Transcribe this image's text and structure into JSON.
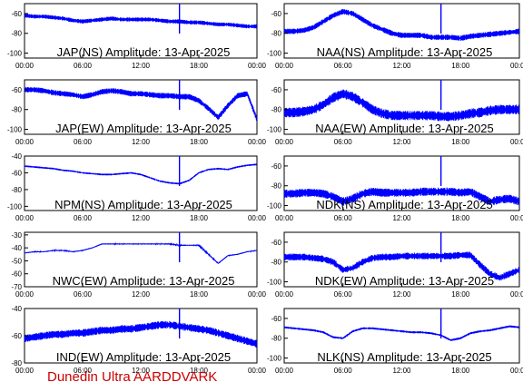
{
  "footer": {
    "credit": "Dunedin Ultra AARDDVARK"
  },
  "colors": {
    "trace": "#0000ff",
    "axis": "#000000",
    "credit": "#cc0000"
  },
  "x_tick_labels": [
    "00:00",
    "06:00",
    "12:00",
    "18:00",
    "00:00"
  ],
  "chart_data": [
    {
      "type": "line",
      "title": "JAP(NS) Amplitude: 13-Apr-2025",
      "xlabel": "",
      "ylabel": "",
      "ylim": [
        -105,
        -50
      ],
      "yticks": [
        "-60",
        "-80",
        "-100"
      ],
      "ytick_values": [
        -60,
        -80,
        -100
      ],
      "xlim": [
        0,
        24
      ],
      "noise": 3,
      "series": [
        {
          "x": [
            0,
            1,
            2,
            3,
            4,
            5,
            6,
            7,
            8,
            9,
            10,
            11,
            12,
            13,
            14,
            15,
            16,
            17,
            18,
            19,
            20,
            21,
            22,
            23,
            24
          ],
          "values": [
            -62,
            -63,
            -63,
            -64,
            -65,
            -67,
            -68,
            -67,
            -66,
            -65,
            -66,
            -66,
            -66,
            -66,
            -67,
            -68,
            -68,
            -69,
            -69,
            -70,
            -71,
            -71,
            -72,
            -73,
            -73
          ]
        }
      ]
    },
    {
      "type": "line",
      "title": "NAA(NS) Amplitude: 13-Apr-2025",
      "xlabel": "",
      "ylabel": "",
      "ylim": [
        -105,
        -50
      ],
      "yticks": [
        "-60",
        "-80",
        "-100"
      ],
      "ytick_values": [
        -60,
        -80,
        -100
      ],
      "xlim": [
        0,
        24
      ],
      "noise": 4,
      "series": [
        {
          "x": [
            0,
            1,
            2,
            3,
            4,
            5,
            6,
            7,
            8,
            9,
            10,
            11,
            12,
            13,
            14,
            15,
            16,
            17,
            18,
            19,
            20,
            21,
            22,
            23,
            24
          ],
          "values": [
            -78,
            -78,
            -77,
            -74,
            -68,
            -62,
            -58,
            -60,
            -66,
            -72,
            -76,
            -80,
            -82,
            -82,
            -82,
            -84,
            -84,
            -84,
            -85,
            -83,
            -82,
            -81,
            -80,
            -79,
            -78
          ]
        }
      ]
    },
    {
      "type": "line",
      "title": "JAP(EW) Amplitude: 13-Apr-2025",
      "xlabel": "",
      "ylabel": "",
      "ylim": [
        -105,
        -50
      ],
      "yticks": [
        "-60",
        "-80",
        "-100"
      ],
      "ytick_values": [
        -60,
        -80,
        -100
      ],
      "xlim": [
        0,
        24
      ],
      "noise": 4,
      "series": [
        {
          "x": [
            0,
            1,
            2,
            3,
            4,
            5,
            6,
            7,
            8,
            9,
            10,
            11,
            12,
            13,
            14,
            15,
            16,
            17,
            18,
            19,
            20,
            21,
            22,
            23,
            24
          ],
          "values": [
            -60,
            -60,
            -61,
            -63,
            -64,
            -65,
            -67,
            -65,
            -62,
            -61,
            -62,
            -64,
            -64,
            -65,
            -66,
            -66,
            -67,
            -67,
            -71,
            -79,
            -88,
            -76,
            -66,
            -64,
            -90
          ]
        }
      ]
    },
    {
      "type": "line",
      "title": "NAA(EW) Amplitude: 13-Apr-2025",
      "xlabel": "",
      "ylabel": "",
      "ylim": [
        -105,
        -50
      ],
      "yticks": [
        "-60",
        "-80",
        "-100"
      ],
      "ytick_values": [
        -60,
        -80,
        -100
      ],
      "xlim": [
        0,
        24
      ],
      "noise": 7,
      "series": [
        {
          "x": [
            0,
            1,
            2,
            3,
            4,
            5,
            6,
            7,
            8,
            9,
            10,
            11,
            12,
            13,
            14,
            15,
            16,
            17,
            18,
            19,
            20,
            21,
            22,
            23,
            24
          ],
          "values": [
            -83,
            -83,
            -82,
            -80,
            -75,
            -68,
            -64,
            -67,
            -73,
            -80,
            -84,
            -86,
            -86,
            -86,
            -86,
            -86,
            -87,
            -87,
            -86,
            -84,
            -83,
            -81,
            -80,
            -80,
            -80
          ]
        }
      ]
    },
    {
      "type": "line",
      "title": "NPM(NS) Amplitude: 13-Apr-2025",
      "xlabel": "",
      "ylabel": "",
      "ylim": [
        -105,
        -40
      ],
      "yticks": [
        "-40",
        "-60",
        "-80",
        "-100"
      ],
      "ytick_values": [
        -40,
        -60,
        -80,
        -100
      ],
      "xlim": [
        0,
        24
      ],
      "noise": 1.5,
      "series": [
        {
          "x": [
            0,
            1,
            2,
            3,
            4,
            5,
            6,
            7,
            8,
            9,
            10,
            11,
            12,
            13,
            14,
            15,
            16,
            17,
            18,
            19,
            20,
            21,
            22,
            23,
            24
          ],
          "values": [
            -52,
            -53,
            -54,
            -55,
            -57,
            -58,
            -60,
            -61,
            -62,
            -62,
            -61,
            -60,
            -62,
            -66,
            -70,
            -72,
            -73,
            -69,
            -60,
            -56,
            -55,
            -56,
            -53,
            -51,
            -50
          ]
        }
      ]
    },
    {
      "type": "line",
      "title": "NDK(NS) Amplitude: 13-Apr-2025",
      "xlabel": "",
      "ylabel": "",
      "ylim": [
        -105,
        -50
      ],
      "yticks": [
        "-60",
        "-80",
        "-100"
      ],
      "ytick_values": [
        -60,
        -80,
        -100
      ],
      "xlim": [
        0,
        24
      ],
      "noise": 6,
      "series": [
        {
          "x": [
            0,
            1,
            2,
            3,
            4,
            5,
            6,
            7,
            8,
            9,
            10,
            11,
            12,
            13,
            14,
            15,
            16,
            17,
            18,
            19,
            20,
            21,
            22,
            23,
            24
          ],
          "values": [
            -88,
            -88,
            -87,
            -87,
            -88,
            -91,
            -96,
            -93,
            -88,
            -86,
            -87,
            -87,
            -87,
            -87,
            -86,
            -86,
            -86,
            -86,
            -87,
            -86,
            -91,
            -96,
            -94,
            -93,
            -96
          ]
        }
      ]
    },
    {
      "type": "line",
      "title": "NWC(EW) Amplitude: 13-Apr-2025",
      "xlabel": "",
      "ylabel": "",
      "ylim": [
        -70,
        -28
      ],
      "yticks": [
        "-30",
        "-40",
        "-50",
        "-60",
        "-70"
      ],
      "ytick_values": [
        -30,
        -40,
        -50,
        -60,
        -70
      ],
      "xlim": [
        0,
        24
      ],
      "noise": 0.6,
      "series": [
        {
          "x": [
            0,
            1,
            2,
            3,
            4,
            5,
            6,
            7,
            8,
            9,
            10,
            11,
            12,
            13,
            14,
            15,
            16,
            17,
            18,
            19,
            20,
            21,
            22,
            23,
            24
          ],
          "values": [
            -44,
            -43,
            -43,
            -42,
            -42,
            -43,
            -42,
            -40,
            -37,
            -37,
            -37,
            -37,
            -37,
            -37,
            -37,
            -37,
            -38,
            -38,
            -38,
            -45,
            -52,
            -46,
            -45,
            -43,
            -42
          ]
        }
      ]
    },
    {
      "type": "line",
      "title": "NDK(EW) Amplitude: 13-Apr-2025",
      "xlabel": "",
      "ylabel": "",
      "ylim": [
        -105,
        -50
      ],
      "yticks": [
        "-60",
        "-80",
        "-100"
      ],
      "ytick_values": [
        -60,
        -80,
        -100
      ],
      "xlim": [
        0,
        24
      ],
      "noise": 5,
      "series": [
        {
          "x": [
            0,
            1,
            2,
            3,
            4,
            5,
            6,
            7,
            8,
            9,
            10,
            11,
            12,
            13,
            14,
            15,
            16,
            17,
            18,
            19,
            20,
            21,
            22,
            23,
            24
          ],
          "values": [
            -75,
            -75,
            -75,
            -76,
            -77,
            -80,
            -88,
            -86,
            -80,
            -76,
            -75,
            -75,
            -74,
            -74,
            -74,
            -74,
            -74,
            -74,
            -73,
            -73,
            -83,
            -92,
            -96,
            -92,
            -88
          ]
        }
      ]
    },
    {
      "type": "line",
      "title": "IND(EW) Amplitude: 13-Apr-2025",
      "xlabel": "",
      "ylabel": "",
      "ylim": [
        -80,
        -40
      ],
      "yticks": [
        "-40",
        "-60",
        "-80"
      ],
      "ytick_values": [
        -40,
        -60,
        -80
      ],
      "xlim": [
        0,
        24
      ],
      "noise": 4,
      "series": [
        {
          "x": [
            0,
            1,
            2,
            3,
            4,
            5,
            6,
            7,
            8,
            9,
            10,
            11,
            12,
            13,
            14,
            15,
            16,
            17,
            18,
            19,
            20,
            21,
            22,
            23,
            24
          ],
          "values": [
            -62,
            -61,
            -60,
            -59,
            -59,
            -58,
            -58,
            -57,
            -56,
            -56,
            -55,
            -55,
            -54,
            -53,
            -52,
            -52,
            -53,
            -54,
            -55,
            -56,
            -58,
            -60,
            -62,
            -64,
            -66
          ]
        }
      ]
    },
    {
      "type": "line",
      "title": "NLK(NS) Amplitude: 13-Apr-2025",
      "xlabel": "",
      "ylabel": "",
      "ylim": [
        -105,
        -50
      ],
      "yticks": [
        "-60",
        "-80",
        "-100"
      ],
      "ytick_values": [
        -60,
        -80,
        -100
      ],
      "xlim": [
        0,
        24
      ],
      "noise": 1.5,
      "series": [
        {
          "x": [
            0,
            1,
            2,
            3,
            4,
            5,
            6,
            7,
            8,
            9,
            10,
            11,
            12,
            13,
            14,
            15,
            16,
            17,
            18,
            19,
            20,
            21,
            22,
            23,
            24
          ],
          "values": [
            -69,
            -70,
            -71,
            -72,
            -74,
            -79,
            -80,
            -73,
            -70,
            -70,
            -71,
            -72,
            -73,
            -74,
            -74,
            -75,
            -77,
            -82,
            -80,
            -75,
            -73,
            -72,
            -70,
            -68,
            -69
          ]
        }
      ]
    }
  ]
}
